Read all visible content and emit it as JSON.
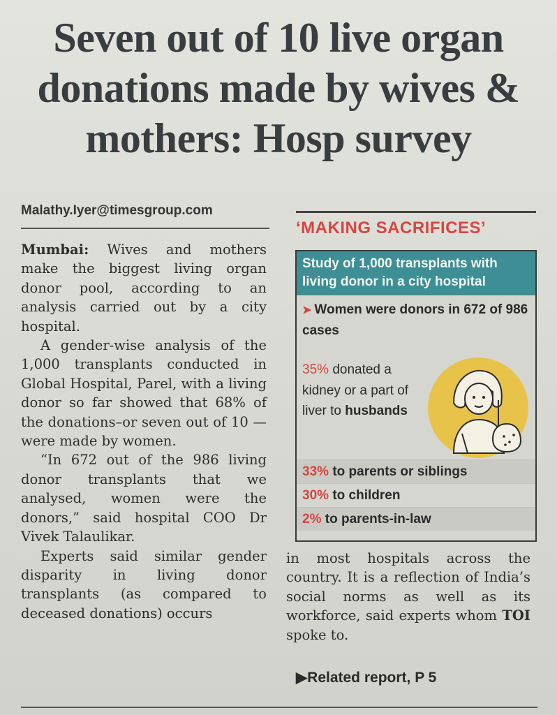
{
  "headline": "Seven out of 10 live organ donations made by wives & mothers: Hosp survey",
  "byline": "Malathy.Iyer@timesgroup.com",
  "body_left": {
    "dateline": "Mumbai:",
    "p1": "Wives and mothers make the biggest living organ donor pool, according to an analysis carried out by a city hospital.",
    "p2": "A gender-wise analysis of the 1,000 transplants conducted in Global Hospital, Parel, with a living donor so far showed that 68% of the donations–or seven out of 10 —were made by women.",
    "p3": "“In 672 out of the 986 living donor transplants that we analysed, women were the donors,” said hospital COO Dr Vivek Talaulikar.",
    "p4": "Experts said similar gender disparity in living donor transplants (as compared to deceased donations) occurs"
  },
  "sidebar": {
    "kicker": "‘MAKING SACRIFICES’",
    "box_title": "Study of 1,000 transplants with living donor in a city hospital",
    "fact1": "Women were donors in 672 of 986 cases",
    "fact2_pct": "35%",
    "fact2_text": "donated a kidney or a part of liver to",
    "fact2_bold": "husbands",
    "fact3_pct": "33%",
    "fact3_text": "to parents or siblings",
    "fact4_pct": "30%",
    "fact4_text": "to children",
    "fact5_pct": "2%",
    "fact5_text": "to parents-in-law"
  },
  "body_right": {
    "p1": "in most hospitals across the country. It is a reflection of India’s social norms as well as its workforce, said experts whom",
    "toi": "TOI",
    "p1_end": "spoke to."
  },
  "related": "Related report, P 5",
  "colors": {
    "accent_red": "#d8453f",
    "box_header_teal": "#3d8f95",
    "illustration_yellow": "#e8c34a"
  }
}
